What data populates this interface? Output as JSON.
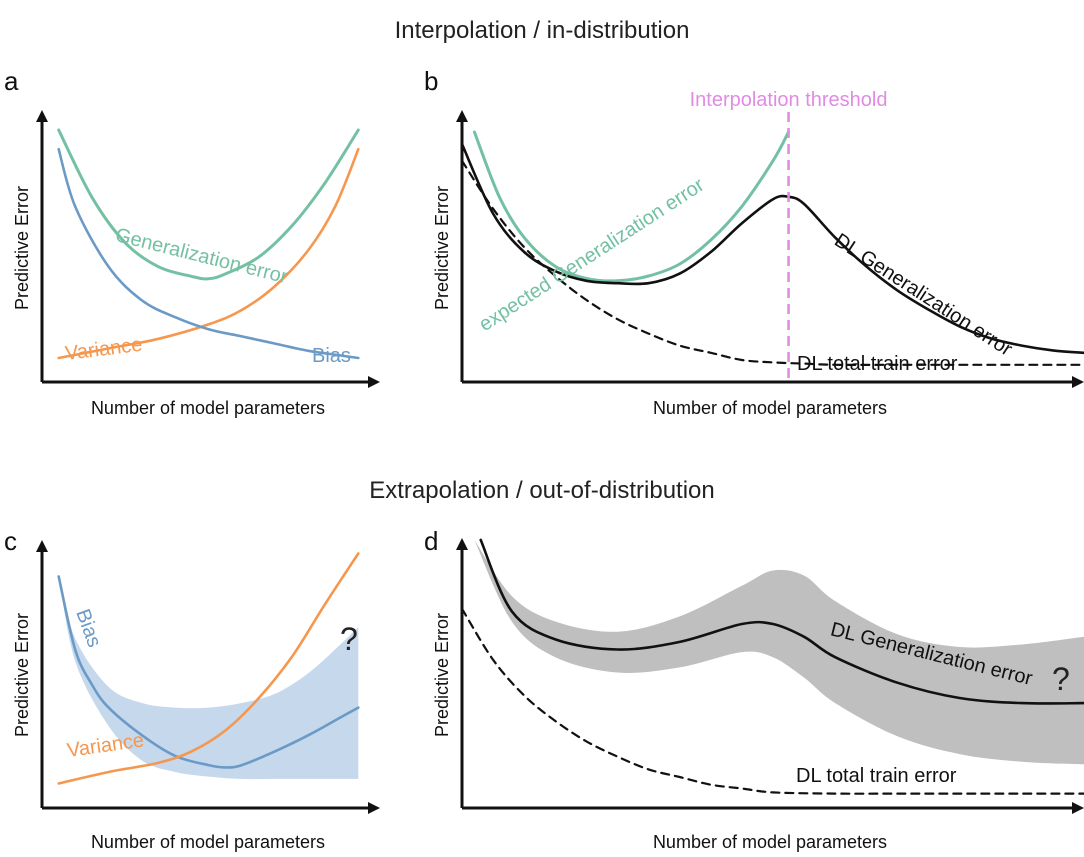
{
  "section_titles": {
    "top": "Interpolation / in-distribution",
    "bottom": "Extrapolation / out-of-distribution"
  },
  "colors": {
    "generalization": "#74c0a3",
    "variance": "#f5974f",
    "bias": "#6b9ac6",
    "bias_band": "#c5d8ec",
    "threshold": "#e08ce3",
    "dl_band": "#bfbfbf",
    "black": "#111111"
  },
  "chart_data": [
    {
      "panel": "a",
      "type": "line",
      "xlabel": "Number of model parameters",
      "ylabel": "Predictive Error",
      "xlim": [
        0,
        1
      ],
      "ylim": [
        0,
        1
      ],
      "series": [
        {
          "name": "Generalization error",
          "style": "generalization",
          "x": [
            0.05,
            0.15,
            0.25,
            0.35,
            0.45,
            0.5,
            0.55,
            0.65,
            0.75,
            0.85,
            0.95
          ],
          "y": [
            1.0,
            0.72,
            0.53,
            0.43,
            0.39,
            0.38,
            0.4,
            0.47,
            0.6,
            0.78,
            1.0
          ]
        },
        {
          "name": "Variance",
          "style": "variance",
          "x": [
            0.05,
            0.2,
            0.35,
            0.5,
            0.6,
            0.7,
            0.8,
            0.88,
            0.95
          ],
          "y": [
            0.05,
            0.09,
            0.13,
            0.19,
            0.25,
            0.35,
            0.5,
            0.68,
            0.92
          ]
        },
        {
          "name": "Bias",
          "style": "bias",
          "x": [
            0.05,
            0.1,
            0.2,
            0.3,
            0.4,
            0.5,
            0.6,
            0.7,
            0.8,
            0.9,
            0.95
          ],
          "y": [
            0.92,
            0.68,
            0.43,
            0.29,
            0.22,
            0.17,
            0.14,
            0.11,
            0.08,
            0.06,
            0.05
          ]
        }
      ]
    },
    {
      "panel": "b",
      "type": "line",
      "xlabel": "Number of model parameters",
      "ylabel": "Predictive Error",
      "annotation": "Interpolation threshold",
      "threshold_x": 0.525,
      "xlim": [
        0,
        1
      ],
      "ylim": [
        0,
        1
      ],
      "series": [
        {
          "name": "expected Generalization error",
          "style": "generalization",
          "x": [
            0.02,
            0.06,
            0.1,
            0.15,
            0.2,
            0.25,
            0.3,
            0.35,
            0.4,
            0.45,
            0.5,
            0.525
          ],
          "y": [
            1.0,
            0.73,
            0.56,
            0.44,
            0.39,
            0.38,
            0.4,
            0.45,
            0.55,
            0.69,
            0.88,
            1.0
          ]
        },
        {
          "name": "DL Generalization error",
          "style": "solid-black",
          "x": [
            0.0,
            0.05,
            0.1,
            0.15,
            0.2,
            0.25,
            0.3,
            0.35,
            0.4,
            0.45,
            0.5,
            0.525,
            0.55,
            0.6,
            0.65,
            0.7,
            0.75,
            0.8,
            0.85,
            0.9,
            0.95,
            1.0
          ],
          "y": [
            0.95,
            0.66,
            0.5,
            0.42,
            0.38,
            0.37,
            0.37,
            0.41,
            0.5,
            0.62,
            0.72,
            0.73,
            0.7,
            0.56,
            0.44,
            0.34,
            0.26,
            0.19,
            0.14,
            0.11,
            0.09,
            0.08
          ]
        },
        {
          "name": "DL total train error",
          "style": "dashed-black",
          "x": [
            0.0,
            0.05,
            0.1,
            0.15,
            0.2,
            0.25,
            0.3,
            0.35,
            0.4,
            0.45,
            0.5,
            0.55,
            0.6,
            0.7,
            0.8,
            0.9,
            1.0
          ],
          "y": [
            0.88,
            0.68,
            0.52,
            0.4,
            0.3,
            0.22,
            0.16,
            0.11,
            0.08,
            0.05,
            0.04,
            0.035,
            0.03,
            0.03,
            0.03,
            0.03,
            0.03
          ]
        }
      ]
    },
    {
      "panel": "c",
      "type": "line",
      "xlabel": "Number of model parameters",
      "ylabel": "Predictive Error",
      "annotation": "?",
      "xlim": [
        0,
        1
      ],
      "ylim": [
        0,
        1
      ],
      "band": {
        "x": [
          0.05,
          0.1,
          0.2,
          0.3,
          0.4,
          0.5,
          0.6,
          0.7,
          0.8,
          0.9,
          0.95
        ],
        "upper": [
          0.95,
          0.68,
          0.47,
          0.4,
          0.38,
          0.38,
          0.4,
          0.44,
          0.53,
          0.66,
          0.73
        ],
        "lower": [
          0.95,
          0.58,
          0.3,
          0.15,
          0.1,
          0.08,
          0.07,
          0.07,
          0.07,
          0.07,
          0.07
        ]
      },
      "series": [
        {
          "name": "Bias",
          "style": "bias",
          "x": [
            0.05,
            0.1,
            0.15,
            0.2,
            0.3,
            0.4,
            0.5,
            0.55,
            0.6,
            0.7,
            0.8,
            0.9,
            0.95
          ],
          "y": [
            0.95,
            0.63,
            0.48,
            0.38,
            0.26,
            0.17,
            0.13,
            0.12,
            0.13,
            0.19,
            0.26,
            0.34,
            0.38
          ]
        },
        {
          "name": "Variance",
          "style": "variance",
          "x": [
            0.05,
            0.2,
            0.35,
            0.45,
            0.55,
            0.65,
            0.75,
            0.85,
            0.95
          ],
          "y": [
            0.05,
            0.1,
            0.14,
            0.19,
            0.28,
            0.42,
            0.6,
            0.83,
            1.05
          ]
        }
      ]
    },
    {
      "panel": "d",
      "type": "line",
      "xlabel": "Number of model parameters",
      "ylabel": "Predictive Error",
      "annotation": "?",
      "xlim": [
        0,
        1
      ],
      "ylim": [
        0,
        1
      ],
      "band": {
        "x": [
          0.02,
          0.08,
          0.15,
          0.25,
          0.35,
          0.45,
          0.5,
          0.55,
          0.6,
          0.7,
          0.8,
          0.9,
          1.0
        ],
        "upper": [
          1.02,
          0.8,
          0.7,
          0.66,
          0.72,
          0.84,
          0.9,
          0.88,
          0.78,
          0.65,
          0.6,
          0.61,
          0.64
        ],
        "lower": [
          1.02,
          0.7,
          0.56,
          0.5,
          0.52,
          0.58,
          0.56,
          0.48,
          0.38,
          0.25,
          0.18,
          0.15,
          0.14
        ]
      },
      "series": [
        {
          "name": "DL Generalization error",
          "style": "solid-black",
          "x": [
            0.03,
            0.08,
            0.15,
            0.25,
            0.35,
            0.45,
            0.5,
            0.55,
            0.6,
            0.7,
            0.8,
            0.9,
            1.0
          ],
          "y": [
            1.02,
            0.74,
            0.63,
            0.59,
            0.62,
            0.69,
            0.69,
            0.64,
            0.56,
            0.46,
            0.4,
            0.38,
            0.38
          ]
        },
        {
          "name": "DL total train error",
          "style": "dashed-black",
          "x": [
            0.0,
            0.05,
            0.1,
            0.15,
            0.2,
            0.25,
            0.3,
            0.35,
            0.4,
            0.45,
            0.5,
            0.6,
            0.7,
            0.8,
            0.9,
            1.0
          ],
          "y": [
            0.75,
            0.55,
            0.41,
            0.31,
            0.23,
            0.17,
            0.12,
            0.09,
            0.06,
            0.045,
            0.03,
            0.025,
            0.025,
            0.025,
            0.025,
            0.025
          ]
        }
      ]
    }
  ]
}
